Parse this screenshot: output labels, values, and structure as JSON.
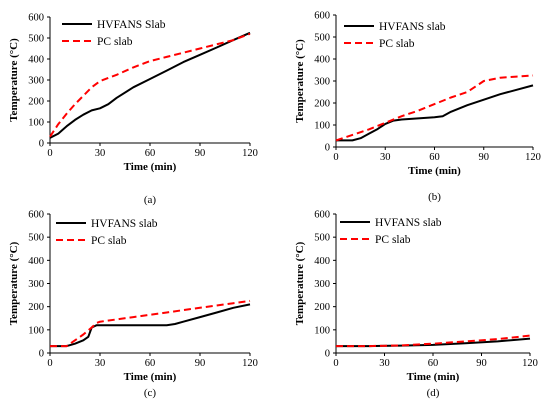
{
  "chart_data": [
    {
      "type": "line",
      "panel_label": "(a)",
      "xlabel": "Time (min)",
      "ylabel": "Temperature (°C)",
      "xlim": [
        0,
        120
      ],
      "ylim": [
        0,
        600
      ],
      "xticks": [
        "0",
        "30",
        "60",
        "90",
        "120"
      ],
      "yticks": [
        "0",
        "100",
        "200",
        "300",
        "400",
        "500",
        "600"
      ],
      "legend_position": "top-left",
      "series": [
        {
          "name": "HVFANS Slab",
          "color": "#000000",
          "dash": "solid",
          "x": [
            0,
            5,
            10,
            15,
            20,
            25,
            30,
            35,
            40,
            50,
            60,
            70,
            80,
            90,
            100,
            110,
            120
          ],
          "y": [
            25,
            45,
            80,
            110,
            135,
            155,
            165,
            185,
            215,
            265,
            305,
            345,
            385,
            420,
            455,
            490,
            525
          ]
        },
        {
          "name": "PC slab",
          "color": "#ff0000",
          "dash": "dashed",
          "x": [
            0,
            5,
            10,
            15,
            20,
            25,
            30,
            40,
            50,
            60,
            70,
            80,
            90,
            100,
            110,
            120
          ],
          "y": [
            30,
            90,
            140,
            185,
            225,
            265,
            295,
            325,
            360,
            390,
            410,
            430,
            450,
            470,
            490,
            520
          ]
        }
      ]
    },
    {
      "type": "line",
      "panel_label": "(b)",
      "xlabel": "Time (min)",
      "ylabel": "Temperature (°C)",
      "xlim": [
        0,
        120
      ],
      "ylim": [
        0,
        600
      ],
      "xticks": [
        "0",
        "30",
        "60",
        "90",
        "120"
      ],
      "yticks": [
        "0",
        "100",
        "200",
        "300",
        "400",
        "500",
        "600"
      ],
      "legend_position": "top-center",
      "series": [
        {
          "name": "HVFANS slab",
          "color": "#000000",
          "dash": "solid",
          "x": [
            0,
            10,
            15,
            20,
            25,
            30,
            35,
            40,
            50,
            60,
            65,
            70,
            80,
            90,
            100,
            110,
            120
          ],
          "y": [
            30,
            30,
            40,
            60,
            80,
            105,
            120,
            125,
            130,
            135,
            140,
            160,
            190,
            215,
            240,
            260,
            280
          ]
        },
        {
          "name": "PC slab",
          "color": "#ff0000",
          "dash": "dashed",
          "x": [
            0,
            10,
            20,
            30,
            40,
            50,
            60,
            70,
            80,
            90,
            100,
            110,
            120
          ],
          "y": [
            30,
            55,
            80,
            110,
            140,
            165,
            195,
            225,
            250,
            300,
            315,
            320,
            325
          ]
        }
      ]
    },
    {
      "type": "line",
      "panel_label": "(c)",
      "xlabel": "Time (min)",
      "ylabel": "Temperature (°C)",
      "xlim": [
        0,
        120
      ],
      "ylim": [
        0,
        600
      ],
      "xticks": [
        "0",
        "30",
        "60",
        "90",
        "120"
      ],
      "yticks": [
        "0",
        "100",
        "200",
        "300",
        "400",
        "500",
        "600"
      ],
      "legend_position": "top-center",
      "series": [
        {
          "name": "HVFANS slab",
          "color": "#000000",
          "dash": "solid",
          "x": [
            0,
            10,
            15,
            20,
            23,
            25,
            28,
            30,
            40,
            50,
            60,
            70,
            75,
            80,
            90,
            100,
            110,
            120
          ],
          "y": [
            30,
            30,
            40,
            55,
            70,
            110,
            120,
            120,
            120,
            120,
            120,
            120,
            125,
            135,
            155,
            175,
            195,
            210
          ]
        },
        {
          "name": "PC slab",
          "color": "#ff0000",
          "dash": "dashed",
          "x": [
            0,
            10,
            15,
            20,
            25,
            28,
            30,
            40,
            50,
            60,
            70,
            80,
            90,
            100,
            110,
            120
          ],
          "y": [
            30,
            30,
            55,
            80,
            110,
            130,
            135,
            145,
            155,
            165,
            175,
            185,
            195,
            205,
            215,
            225
          ]
        }
      ]
    },
    {
      "type": "line",
      "panel_label": "(d)",
      "xlabel": "Time (min)",
      "ylabel": "Temperature (°C)",
      "xlim": [
        0,
        120
      ],
      "ylim": [
        0,
        600
      ],
      "xticks": [
        "0",
        "30",
        "60",
        "90",
        "120"
      ],
      "yticks": [
        "0",
        "100",
        "200",
        "300",
        "400",
        "500",
        "600"
      ],
      "legend_position": "top-center",
      "series": [
        {
          "name": "HVFANS slab",
          "color": "#000000",
          "dash": "solid",
          "x": [
            0,
            20,
            40,
            60,
            80,
            100,
            120
          ],
          "y": [
            30,
            30,
            32,
            35,
            42,
            50,
            62
          ]
        },
        {
          "name": "PC slab",
          "color": "#ff0000",
          "dash": "dashed",
          "x": [
            0,
            20,
            40,
            60,
            80,
            100,
            120
          ],
          "y": [
            30,
            30,
            33,
            40,
            50,
            60,
            75
          ]
        }
      ]
    }
  ]
}
